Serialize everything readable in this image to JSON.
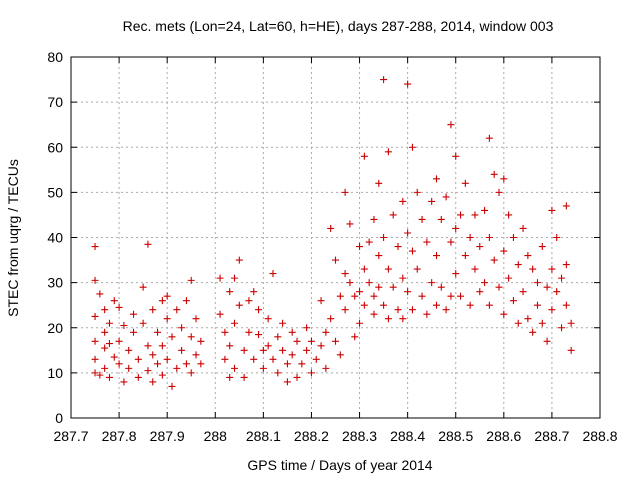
{
  "chart_data": {
    "type": "scatter",
    "title": "Rec. mets (Lon=24, Lat=60, h=HE), days 287-288, 2014, window 003",
    "xlabel": "GPS time / Days of year 2014",
    "ylabel": "STEC from uqrg / TECUs",
    "xlim": [
      287.7,
      288.8
    ],
    "ylim": [
      0,
      80
    ],
    "xticks": [
      "287.7",
      "287.8",
      "287.9",
      "288",
      "288.1",
      "288.2",
      "288.3",
      "288.4",
      "288.5",
      "288.6",
      "288.7",
      "288.8"
    ],
    "yticks": [
      "0",
      "10",
      "20",
      "30",
      "40",
      "50",
      "60",
      "70",
      "80"
    ],
    "grid": true,
    "marker": "+",
    "color": "#cc0000",
    "series": [
      {
        "points": [
          [
            287.75,
            38
          ],
          [
            287.75,
            30.5
          ],
          [
            287.76,
            27.5
          ],
          [
            287.75,
            22.5
          ],
          [
            287.75,
            17
          ],
          [
            287.75,
            13
          ],
          [
            287.75,
            10
          ],
          [
            287.76,
            9.5
          ],
          [
            287.77,
            24
          ],
          [
            287.77,
            19
          ],
          [
            287.77,
            15.5
          ],
          [
            287.77,
            11
          ],
          [
            287.78,
            21
          ],
          [
            287.78,
            16.5
          ],
          [
            287.78,
            9
          ],
          [
            287.79,
            26
          ],
          [
            287.79,
            13.5
          ],
          [
            287.8,
            24.5
          ],
          [
            287.8,
            17
          ],
          [
            287.8,
            12
          ],
          [
            287.81,
            8
          ],
          [
            287.81,
            20.5
          ],
          [
            287.82,
            15
          ],
          [
            287.82,
            11
          ],
          [
            287.83,
            23
          ],
          [
            287.83,
            19
          ],
          [
            287.84,
            13
          ],
          [
            287.84,
            9
          ],
          [
            287.85,
            29
          ],
          [
            287.85,
            21
          ],
          [
            287.86,
            38.5
          ],
          [
            287.86,
            16
          ],
          [
            287.86,
            10.5
          ],
          [
            287.87,
            24
          ],
          [
            287.87,
            14
          ],
          [
            287.87,
            8
          ],
          [
            287.88,
            19
          ],
          [
            287.88,
            12
          ],
          [
            287.89,
            26
          ],
          [
            287.89,
            16
          ],
          [
            287.89,
            9.5
          ],
          [
            287.9,
            22
          ],
          [
            287.9,
            27
          ],
          [
            287.9,
            13
          ],
          [
            287.91,
            7
          ],
          [
            287.91,
            18
          ],
          [
            287.92,
            24
          ],
          [
            287.92,
            11
          ],
          [
            287.93,
            20
          ],
          [
            287.93,
            15
          ],
          [
            287.94,
            26
          ],
          [
            287.94,
            12
          ],
          [
            287.95,
            30.5
          ],
          [
            287.95,
            18
          ],
          [
            287.95,
            10
          ],
          [
            287.96,
            22
          ],
          [
            287.96,
            14
          ],
          [
            287.97,
            17
          ],
          [
            287.97,
            12
          ],
          [
            288.01,
            31
          ],
          [
            288.01,
            23
          ],
          [
            288.02,
            19
          ],
          [
            288.02,
            13
          ],
          [
            288.03,
            28
          ],
          [
            288.03,
            16
          ],
          [
            288.03,
            9
          ],
          [
            288.04,
            31
          ],
          [
            288.04,
            21
          ],
          [
            288.04,
            11
          ],
          [
            288.05,
            35
          ],
          [
            288.05,
            25
          ],
          [
            288.06,
            15
          ],
          [
            288.06,
            9
          ],
          [
            288.07,
            26
          ],
          [
            288.07,
            19
          ],
          [
            288.08,
            13
          ],
          [
            288.08,
            28
          ],
          [
            288.09,
            24
          ],
          [
            288.09,
            18.5
          ],
          [
            288.1,
            15
          ],
          [
            288.1,
            11
          ],
          [
            288.11,
            22
          ],
          [
            288.11,
            16
          ],
          [
            288.12,
            32
          ],
          [
            288.12,
            13
          ],
          [
            288.13,
            18
          ],
          [
            288.13,
            10
          ],
          [
            288.14,
            15
          ],
          [
            288.14,
            21
          ],
          [
            288.15,
            12
          ],
          [
            288.15,
            8
          ],
          [
            288.16,
            19
          ],
          [
            288.16,
            14
          ],
          [
            288.17,
            9
          ],
          [
            288.17,
            17
          ],
          [
            288.18,
            12
          ],
          [
            288.19,
            20
          ],
          [
            288.19,
            15
          ],
          [
            288.2,
            10
          ],
          [
            288.2,
            17
          ],
          [
            288.21,
            13
          ],
          [
            288.22,
            26
          ],
          [
            288.22,
            16
          ],
          [
            288.23,
            11
          ],
          [
            288.23,
            19
          ],
          [
            288.24,
            42
          ],
          [
            288.24,
            22
          ],
          [
            288.25,
            35
          ],
          [
            288.25,
            17
          ],
          [
            288.26,
            27
          ],
          [
            288.26,
            14
          ],
          [
            288.27,
            50
          ],
          [
            288.27,
            32
          ],
          [
            288.27,
            24
          ],
          [
            288.28,
            30
          ],
          [
            288.28,
            43
          ],
          [
            288.29,
            27
          ],
          [
            288.29,
            18
          ],
          [
            288.3,
            38
          ],
          [
            288.3,
            28
          ],
          [
            288.3,
            21
          ],
          [
            288.31,
            58
          ],
          [
            288.31,
            33
          ],
          [
            288.31,
            25
          ],
          [
            288.32,
            39
          ],
          [
            288.32,
            30
          ],
          [
            288.33,
            44
          ],
          [
            288.33,
            27
          ],
          [
            288.33,
            23
          ],
          [
            288.34,
            52
          ],
          [
            288.34,
            36
          ],
          [
            288.34,
            29
          ],
          [
            288.35,
            75
          ],
          [
            288.35,
            40
          ],
          [
            288.35,
            25
          ],
          [
            288.36,
            59
          ],
          [
            288.36,
            33
          ],
          [
            288.36,
            22
          ],
          [
            288.37,
            45
          ],
          [
            288.37,
            29
          ],
          [
            288.38,
            38
          ],
          [
            288.38,
            24
          ],
          [
            288.39,
            48
          ],
          [
            288.39,
            31
          ],
          [
            288.39,
            22
          ],
          [
            288.4,
            74
          ],
          [
            288.4,
            41
          ],
          [
            288.4,
            28
          ],
          [
            288.41,
            60
          ],
          [
            288.41,
            37
          ],
          [
            288.41,
            24
          ],
          [
            288.42,
            50
          ],
          [
            288.42,
            33
          ],
          [
            288.43,
            44
          ],
          [
            288.43,
            27
          ],
          [
            288.44,
            39
          ],
          [
            288.44,
            23
          ],
          [
            288.45,
            48
          ],
          [
            288.45,
            30
          ],
          [
            288.46,
            53
          ],
          [
            288.46,
            36
          ],
          [
            288.46,
            25
          ],
          [
            288.47,
            44
          ],
          [
            288.47,
            29
          ],
          [
            288.48,
            49
          ],
          [
            288.48,
            24
          ],
          [
            288.49,
            65
          ],
          [
            288.49,
            39
          ],
          [
            288.49,
            27
          ],
          [
            288.5,
            58
          ],
          [
            288.5,
            42
          ],
          [
            288.5,
            32
          ],
          [
            288.51,
            45
          ],
          [
            288.51,
            27
          ],
          [
            288.52,
            52
          ],
          [
            288.52,
            36
          ],
          [
            288.53,
            40
          ],
          [
            288.53,
            25
          ],
          [
            288.54,
            45
          ],
          [
            288.54,
            33
          ],
          [
            288.55,
            38
          ],
          [
            288.55,
            28
          ],
          [
            288.56,
            46
          ],
          [
            288.56,
            30
          ],
          [
            288.57,
            62
          ],
          [
            288.57,
            40
          ],
          [
            288.57,
            25
          ],
          [
            288.58,
            54
          ],
          [
            288.58,
            35
          ],
          [
            288.59,
            50
          ],
          [
            288.59,
            29
          ],
          [
            288.6,
            53
          ],
          [
            288.6,
            37
          ],
          [
            288.6,
            23
          ],
          [
            288.61,
            45
          ],
          [
            288.61,
            31
          ],
          [
            288.62,
            40
          ],
          [
            288.62,
            26
          ],
          [
            288.63,
            34
          ],
          [
            288.63,
            21
          ],
          [
            288.64,
            42
          ],
          [
            288.64,
            28
          ],
          [
            288.65,
            36
          ],
          [
            288.65,
            22
          ],
          [
            288.66,
            33
          ],
          [
            288.66,
            19
          ],
          [
            288.67,
            30
          ],
          [
            288.67,
            25
          ],
          [
            288.68,
            38
          ],
          [
            288.68,
            21
          ],
          [
            288.69,
            29
          ],
          [
            288.69,
            17
          ],
          [
            288.7,
            46
          ],
          [
            288.7,
            33
          ],
          [
            288.7,
            24
          ],
          [
            288.71,
            40
          ],
          [
            288.71,
            28
          ],
          [
            288.72,
            31
          ],
          [
            288.72,
            20
          ],
          [
            288.73,
            47
          ],
          [
            288.73,
            34
          ],
          [
            288.73,
            25
          ],
          [
            288.74,
            21
          ],
          [
            288.74,
            15
          ]
        ]
      }
    ]
  }
}
